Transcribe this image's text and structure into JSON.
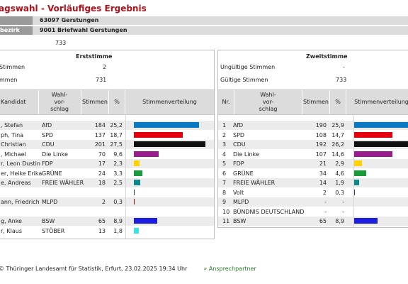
{
  "title": "agswahl - Vorläufiges Ergebnis",
  "header": {
    "row1_label": "",
    "row1_value": "63097  Gerstungen",
    "row2_label": "bezirk",
    "row2_value": "9001  Briefwahl Gerstungen"
  },
  "waehler_value": "733",
  "erststimme": {
    "title": "Erststimme",
    "invalid_label": "Stimmen",
    "invalid_value": "2",
    "valid_label": "mmen",
    "valid_value": "731",
    "col_kandidat": "Kandidat",
    "col_vorschlag": "Wahl-\nvor-\nschlag",
    "col_stimmen": "Stimmen",
    "col_pct": "%",
    "col_vert": "Stimmenverteilung",
    "rows": [
      {
        "kandidat": ", Stefan",
        "partei": "AfD",
        "stimmen": "184",
        "pct": "25,2",
        "share": 25.2,
        "color": "#0a79c4"
      },
      {
        "kandidat": "ph, Tina",
        "partei": "SPD",
        "stimmen": "137",
        "pct": "18,7",
        "share": 18.7,
        "color": "#e3000f"
      },
      {
        "kandidat": "Christian",
        "partei": "CDU",
        "stimmen": "201",
        "pct": "27,5",
        "share": 27.5,
        "color": "#111111"
      },
      {
        "kandidat": ", Michael",
        "partei": "Die Linke",
        "stimmen": "70",
        "pct": "9,6",
        "share": 9.6,
        "color": "#9b1c8c"
      },
      {
        "kandidat": "r, Leon Dustin",
        "partei": "FDP",
        "stimmen": "17",
        "pct": "2,3",
        "share": 2.3,
        "color": "#ffd200"
      },
      {
        "kandidat": "er, Heike Erika",
        "partei": "GRÜNE",
        "stimmen": "24",
        "pct": "3,3",
        "share": 3.3,
        "color": "#1a9a3a"
      },
      {
        "kandidat": "e, Andreas",
        "partei": "FREIE WÄHLER",
        "stimmen": "18",
        "pct": "2,5",
        "share": 2.5,
        "color": "#0a8a8a"
      },
      {
        "kandidat": "",
        "partei": "",
        "stimmen": "",
        "pct": "",
        "share": 0,
        "color": "#ffffff",
        "marker": "#1a3a9a"
      },
      {
        "kandidat": "ann, Friedrich",
        "partei": "MLPD",
        "stimmen": "2",
        "pct": "0,3",
        "share": 0.3,
        "color": "#c00000"
      },
      {
        "kandidat": "",
        "partei": "",
        "stimmen": "",
        "pct": "",
        "share": 0,
        "color": "#ffffff"
      },
      {
        "kandidat": "g, Anke",
        "partei": "BSW",
        "stimmen": "65",
        "pct": "8,9",
        "share": 8.9,
        "color": "#1d1de0"
      },
      {
        "kandidat": "r, Klaus",
        "partei": "STÖBER",
        "stimmen": "13",
        "pct": "1,8",
        "share": 1.8,
        "color": "#36e5e5"
      }
    ]
  },
  "zweitstimme": {
    "title": "Zweitstimme",
    "invalid_label": "Ungültige Stimmen",
    "invalid_value": "-",
    "valid_label": "Gültige Stimmen",
    "valid_value": "733",
    "col_nr": "Nr.",
    "col_vorschlag": "Wahl-\nvor-\nschlag",
    "col_stimmen": "Stimmen",
    "col_pct": "%",
    "col_vert": "Stimmenverteilung",
    "rows": [
      {
        "nr": "1",
        "partei": "AfD",
        "stimmen": "190",
        "pct": "25,9",
        "share": 25.9,
        "color": "#0a79c4"
      },
      {
        "nr": "2",
        "partei": "SPD",
        "stimmen": "108",
        "pct": "14,7",
        "share": 14.7,
        "color": "#e3000f"
      },
      {
        "nr": "3",
        "partei": "CDU",
        "stimmen": "192",
        "pct": "26,2",
        "share": 26.2,
        "color": "#111111"
      },
      {
        "nr": "4",
        "partei": "Die Linke",
        "stimmen": "107",
        "pct": "14,6",
        "share": 14.6,
        "color": "#9b1c8c"
      },
      {
        "nr": "5",
        "partei": "FDP",
        "stimmen": "21",
        "pct": "2,9",
        "share": 2.9,
        "color": "#ffd200"
      },
      {
        "nr": "6",
        "partei": "GRÜNE",
        "stimmen": "34",
        "pct": "4,6",
        "share": 4.6,
        "color": "#1a9a3a"
      },
      {
        "nr": "7",
        "partei": "FREIE WÄHLER",
        "stimmen": "14",
        "pct": "1,9",
        "share": 1.9,
        "color": "#0a8a8a"
      },
      {
        "nr": "8",
        "partei": "Volt",
        "stimmen": "2",
        "pct": "0,3",
        "share": 0.3,
        "color": "#502379"
      },
      {
        "nr": "9",
        "partei": "MLPD",
        "stimmen": "-",
        "pct": "-",
        "share": 0,
        "color": "#ffffff"
      },
      {
        "nr": "10",
        "partei": "BÜNDNIS DEUTSCHLAND",
        "stimmen": "-",
        "pct": "-",
        "share": 0,
        "color": "#ffffff"
      },
      {
        "nr": "11",
        "partei": "BSW",
        "stimmen": "65",
        "pct": "8,9",
        "share": 8.9,
        "color": "#1d1de0"
      }
    ]
  },
  "footer": {
    "source": "© Thüringer Landesamt für Statistik, Erfurt, 23.02.2025 19:34 Uhr",
    "link": "» Ansprechpartner"
  }
}
